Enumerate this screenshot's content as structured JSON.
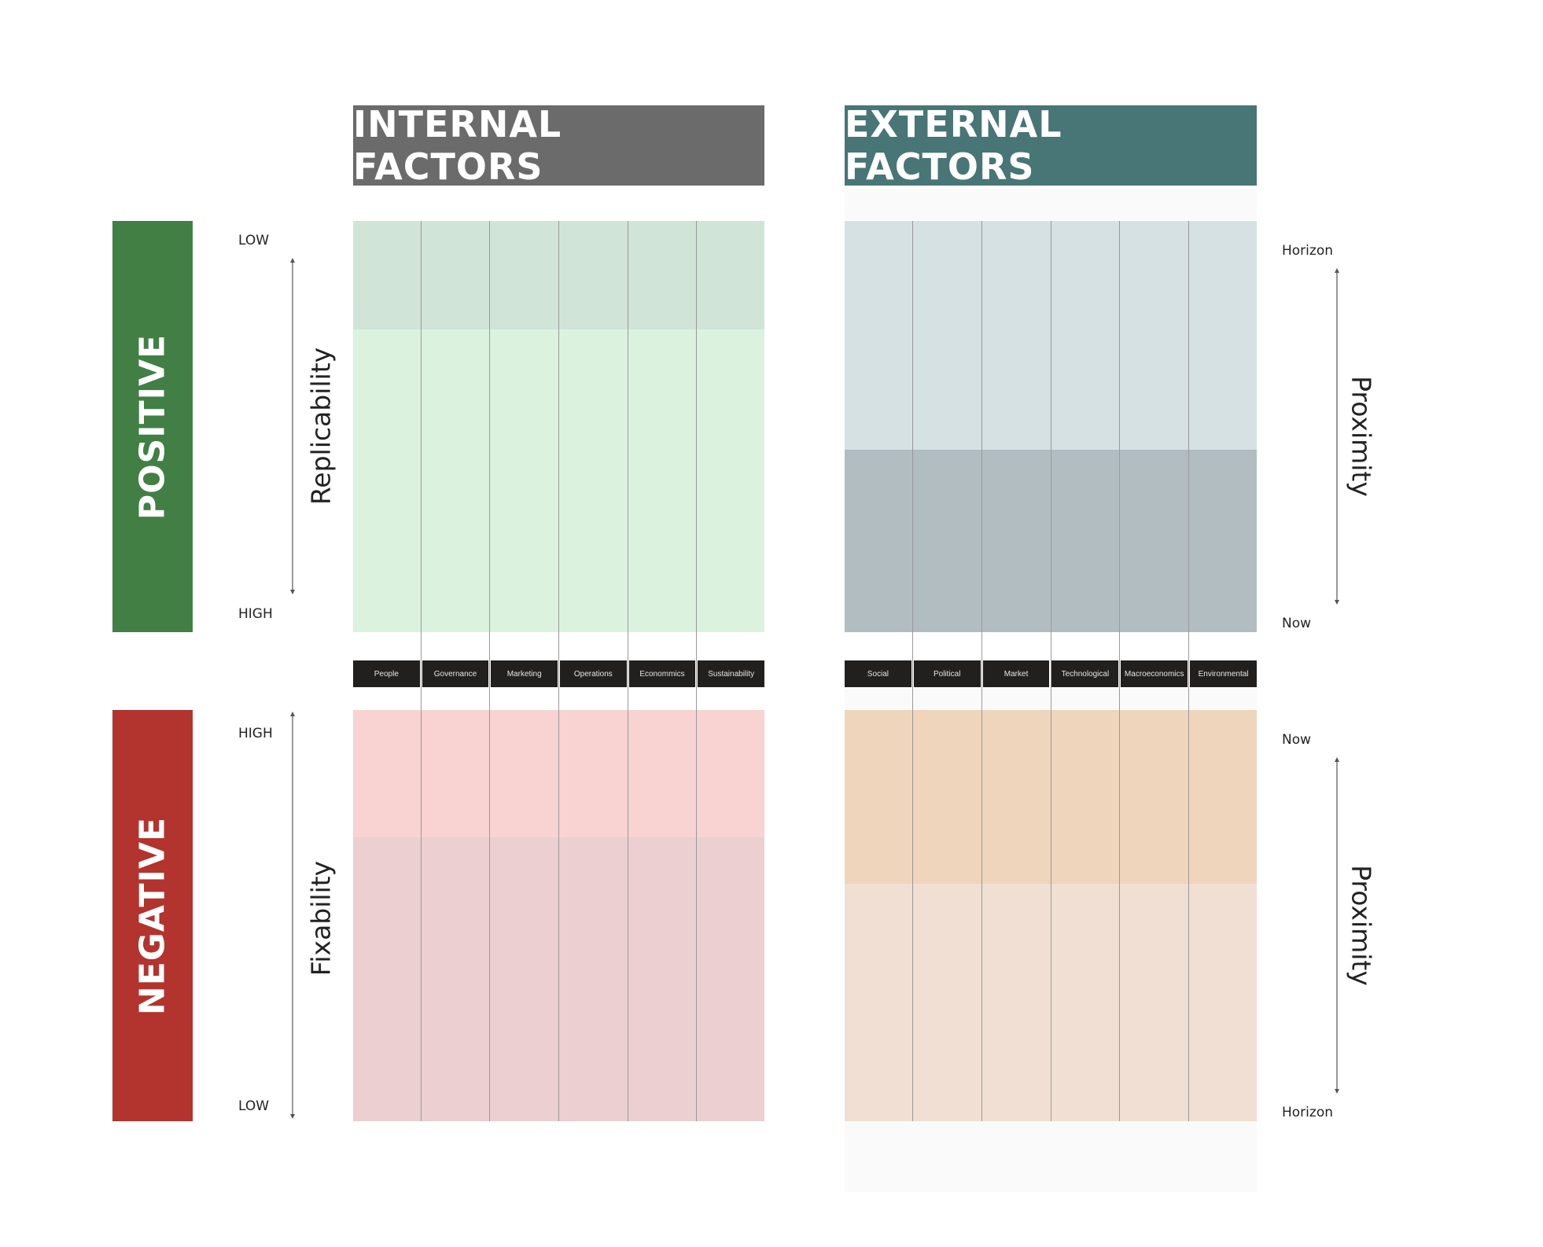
{
  "headers": {
    "internal": "INTERNAL FACTORS",
    "external": "EXTERNAL FACTORS"
  },
  "rows": {
    "positive": "POSITIVE",
    "negative": "NEGATIVE"
  },
  "left_axes": {
    "top": {
      "title": "Replicability",
      "start_label": "LOW",
      "end_label": "HIGH"
    },
    "bottom": {
      "title": "Fixability",
      "start_label": "HIGH",
      "end_label": "LOW"
    }
  },
  "right_axes": {
    "top": {
      "title": "Proximity",
      "start_label": "Horizon",
      "end_label": "Now"
    },
    "bottom": {
      "title": "Proximity",
      "start_label": "Now",
      "end_label": "Horizon"
    }
  },
  "internal_categories": [
    "People",
    "Governance",
    "Marketing",
    "Operations",
    "Econommics",
    "Sustainability"
  ],
  "external_categories": [
    "Social",
    "Political",
    "Market",
    "Technological",
    "Macroeconomics",
    "Environmental"
  ],
  "colors": {
    "internal_header": "#6b6b6b",
    "external_header": "#487575",
    "positive": "#427f45",
    "negative": "#b3332e",
    "internal_pos_light": "#d1e4d8",
    "internal_pos_main": "#dbf2df",
    "internal_neg_top": "#f8d3d2",
    "internal_neg_main": "#ebcfd1",
    "external_pos_top": "#d5e1e2",
    "external_pos_bottom": "#b1bdc1",
    "external_neg_top": "#efd5bc",
    "external_neg_bottom": "#f1dfd4",
    "category_bar": "#221f1f"
  }
}
